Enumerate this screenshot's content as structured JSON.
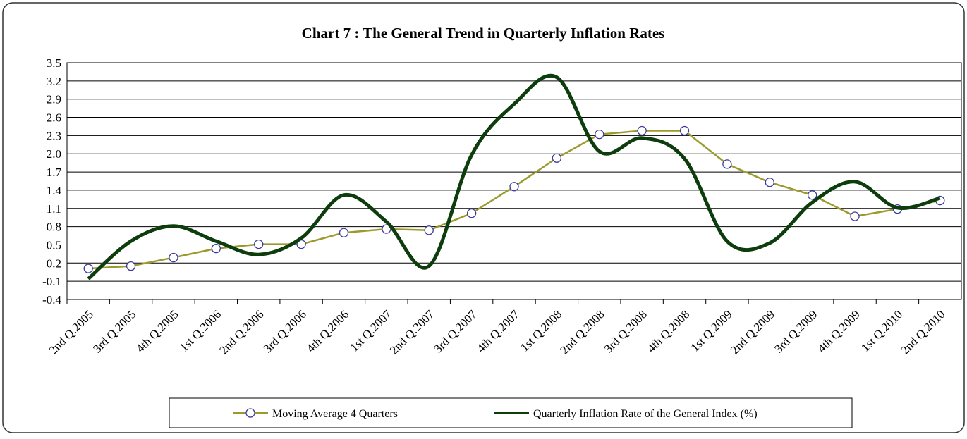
{
  "chart_data": {
    "type": "line",
    "title": "Chart 7 : The General Trend in Quarterly Inflation Rates",
    "categories": [
      "2nd Q.2005",
      "3rd Q.2005",
      "4th Q.2005",
      "1st Q.2006",
      "2nd Q.2006",
      "3rd Q.2006",
      "4th Q.2006",
      "1st Q.2007",
      "2nd Q.2007",
      "3rd Q.2007",
      "4th Q.2007",
      "1st Q.2008",
      "2nd Q.2008",
      "3rd Q.2008",
      "4th Q.2008",
      "1st Q.2009",
      "2nd Q.2009",
      "3rd Q.2009",
      "4th Q.2009",
      "1st Q.2010",
      "2nd Q.2010"
    ],
    "series": [
      {
        "name": "Moving Average 4 Quarters",
        "color": "#9c9a2c",
        "marker": true,
        "smooth": false,
        "values": [
          0.11,
          0.15,
          0.29,
          0.44,
          0.51,
          0.51,
          0.7,
          0.76,
          0.74,
          1.02,
          1.46,
          1.93,
          2.32,
          2.38,
          2.38,
          1.83,
          1.53,
          1.32,
          0.97,
          1.09,
          1.23
        ]
      },
      {
        "name": "Quarterly Inflation Rate of the General Index (%)",
        "color": "#0d3d0d",
        "marker": false,
        "smooth": true,
        "values": [
          -0.06,
          0.56,
          0.81,
          0.56,
          0.34,
          0.61,
          1.32,
          0.88,
          0.15,
          1.98,
          2.82,
          3.26,
          2.04,
          2.26,
          1.92,
          0.56,
          0.53,
          1.2,
          1.54,
          1.11,
          1.27
        ]
      }
    ],
    "ylim": [
      -0.4,
      3.5
    ],
    "yticks": [
      3.5,
      3.2,
      2.9,
      2.6,
      2.3,
      {
        "value": 2,
        "label": "2.0"
      },
      1.7,
      1.4,
      1.1,
      0.8,
      0.5,
      0.2,
      -0.1,
      -0.4
    ],
    "grid": true,
    "legend": "bottom"
  }
}
